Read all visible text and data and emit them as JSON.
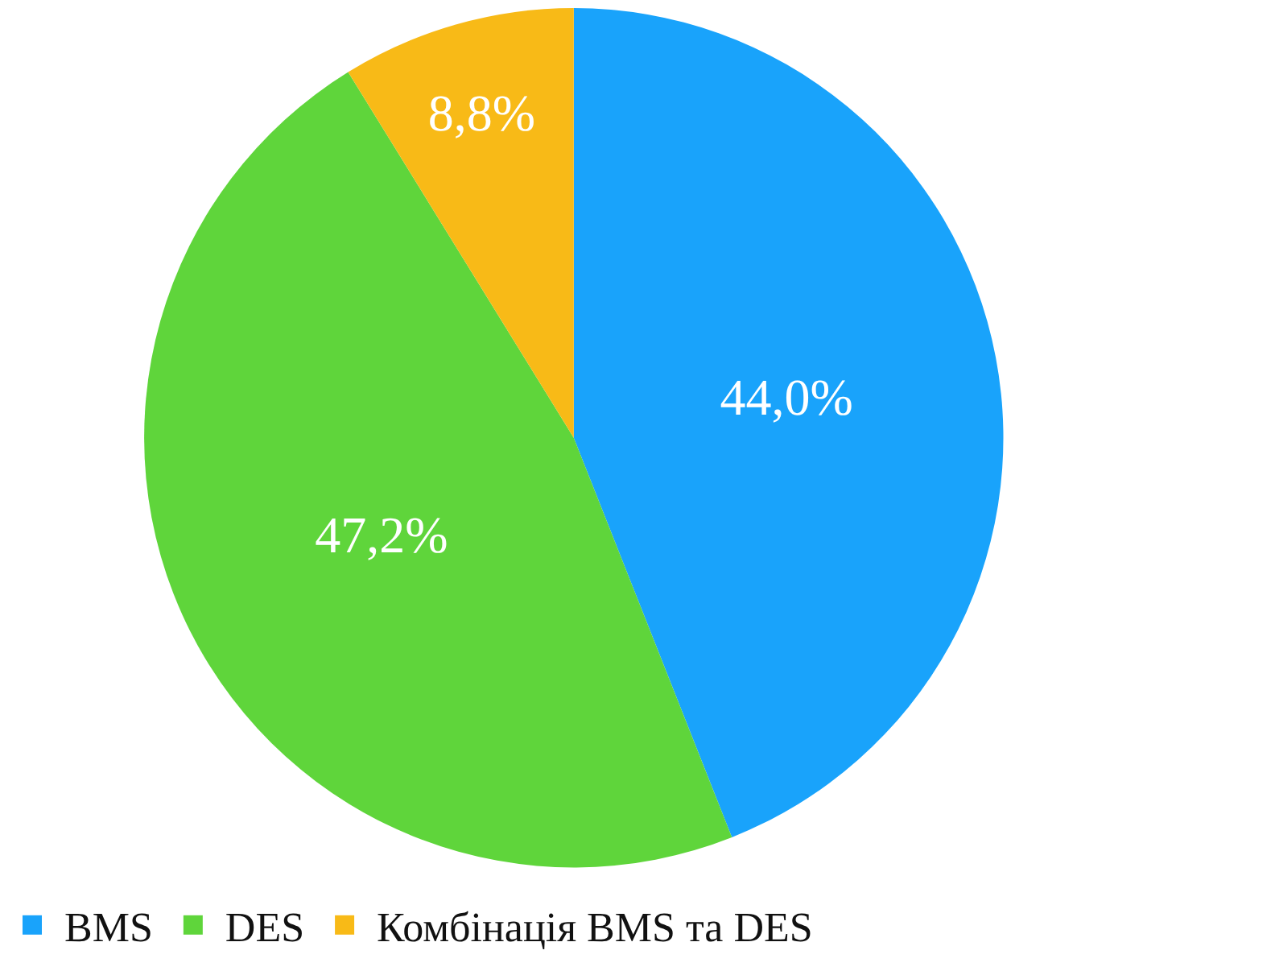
{
  "chart_data": {
    "type": "pie",
    "categories": [
      "BMS",
      "DES",
      "Комбінація BMS та DES"
    ],
    "values": [
      44.0,
      47.2,
      8.8
    ],
    "colors": [
      "#19a3fb",
      "#5fd53b",
      "#f8ba17"
    ],
    "value_labels": [
      "44,0%",
      "47,2%",
      "8,8%"
    ],
    "legend": "bottom"
  }
}
